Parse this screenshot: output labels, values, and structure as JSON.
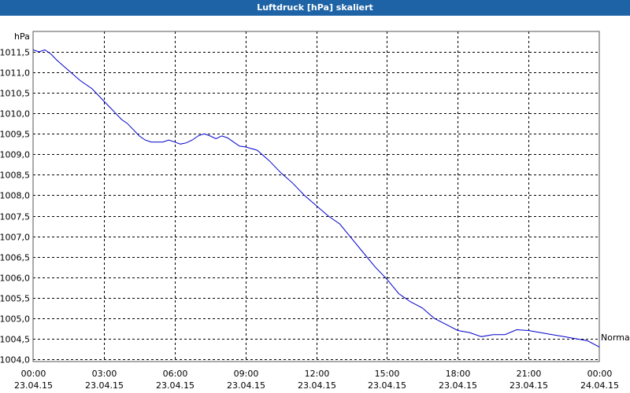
{
  "window": {
    "title": "Luftdruck [hPa] skaliert"
  },
  "chart_data": {
    "type": "line",
    "title": "Luftdruck [hPa] skaliert",
    "ylabel": "hPa",
    "xlabel": "",
    "ylim": [
      1004.0,
      1011.6
    ],
    "xlim_hours": [
      0,
      24
    ],
    "grid": true,
    "y_ticks": [
      "1011,5",
      "1011,0",
      "1010,5",
      "1010,0",
      "1009,5",
      "1009,0",
      "1008,5",
      "1008,0",
      "1007,5",
      "1007,0",
      "1006,5",
      "1006,0",
      "1005,5",
      "1005,0",
      "1004,5",
      "1004,0"
    ],
    "y_tick_values": [
      1011.5,
      1011.0,
      1010.5,
      1010.0,
      1009.5,
      1009.0,
      1008.5,
      1008.0,
      1007.5,
      1007.0,
      1006.5,
      1006.0,
      1005.5,
      1005.0,
      1004.5,
      1004.0
    ],
    "x_ticks": [
      {
        "time": "00:00",
        "date": "23.04.15"
      },
      {
        "time": "03:00",
        "date": "23.04.15"
      },
      {
        "time": "06:00",
        "date": "23.04.15"
      },
      {
        "time": "09:00",
        "date": "23.04.15"
      },
      {
        "time": "12:00",
        "date": "23.04.15"
      },
      {
        "time": "15:00",
        "date": "23.04.15"
      },
      {
        "time": "18:00",
        "date": "23.04.15"
      },
      {
        "time": "21:00",
        "date": "23.04.15"
      },
      {
        "time": "00:00",
        "date": "24.04.15"
      }
    ],
    "x_tick_hours": [
      0,
      3,
      6,
      9,
      12,
      15,
      18,
      21,
      24
    ],
    "reference_label": "Normal",
    "reference_value": 1004.5,
    "series": [
      {
        "color": "#0000cc",
        "x": [
          0.0,
          0.25,
          0.5,
          0.75,
          1.0,
          1.5,
          2.0,
          2.5,
          3.0,
          3.25,
          3.5,
          3.75,
          4.0,
          4.5,
          4.75,
          5.0,
          5.25,
          5.5,
          5.75,
          6.0,
          6.25,
          6.5,
          6.75,
          7.0,
          7.25,
          7.5,
          7.75,
          8.0,
          8.25,
          8.5,
          8.75,
          9.0,
          9.5,
          10.0,
          10.5,
          11.0,
          11.5,
          12.0,
          12.5,
          13.0,
          13.5,
          14.0,
          14.5,
          15.0,
          15.5,
          16.0,
          16.5,
          17.0,
          17.5,
          18.0,
          18.5,
          19.0,
          19.5,
          20.0,
          20.5,
          21.0,
          21.5,
          22.0,
          22.5,
          23.0,
          23.5,
          24.0
        ],
        "y": [
          1011.55,
          1011.5,
          1011.55,
          1011.45,
          1011.3,
          1011.05,
          1010.8,
          1010.6,
          1010.3,
          1010.15,
          1010.0,
          1009.85,
          1009.75,
          1009.45,
          1009.35,
          1009.3,
          1009.3,
          1009.3,
          1009.35,
          1009.3,
          1009.25,
          1009.28,
          1009.35,
          1009.45,
          1009.5,
          1009.45,
          1009.38,
          1009.45,
          1009.4,
          1009.3,
          1009.2,
          1009.18,
          1009.1,
          1008.85,
          1008.55,
          1008.3,
          1008.0,
          1007.75,
          1007.5,
          1007.3,
          1006.95,
          1006.6,
          1006.25,
          1005.95,
          1005.6,
          1005.4,
          1005.25,
          1005.0,
          1004.85,
          1004.7,
          1004.65,
          1004.55,
          1004.6,
          1004.6,
          1004.72,
          1004.7,
          1004.65,
          1004.6,
          1004.55,
          1004.5,
          1004.45,
          1004.3
        ]
      }
    ]
  }
}
